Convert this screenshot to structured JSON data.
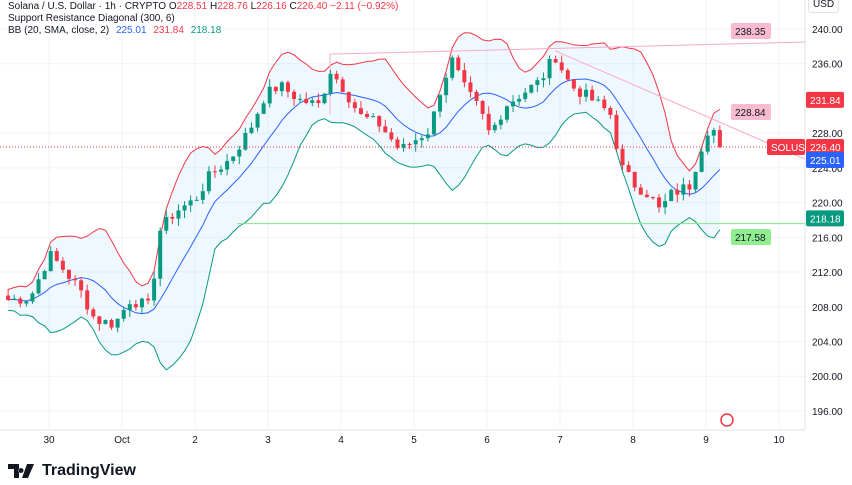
{
  "legend": {
    "title": "Solana / U.S. Dollar · 1h · CRYPTO",
    "o_label": "O",
    "o": "228.51",
    "h_label": "H",
    "h": "228.76",
    "l_label": "L",
    "l": "226.16",
    "c_label": "C",
    "c": "226.40",
    "change": "−2.11 (−0.92%)",
    "sr": "Support Resistance Diagonal (300, 6)",
    "bb": "BB (20, SMA, close, 2)",
    "bb_mid": "225.01",
    "bb_up": "231.84",
    "bb_low": "218.18"
  },
  "currency": "USD",
  "brand": "TradingView",
  "colors": {
    "up": "#089981",
    "down": "#f23645",
    "basis": "#2962ff",
    "band": "#f23645",
    "lower": "#089981",
    "sr": "#f7a9c8",
    "support": "#7ee787"
  },
  "chart_data": {
    "type": "candlestick",
    "symbol": "SOLUSD",
    "last_price": "226.40",
    "ylim": [
      194,
      242
    ],
    "y_ticks": [
      "240.00",
      "236.00",
      "228.00",
      "224.00",
      "220.00",
      "216.00",
      "212.00",
      "208.00",
      "204.00",
      "200.00",
      "196.00"
    ],
    "x_ticks": [
      {
        "label": "30",
        "day": -1
      },
      {
        "label": "Oct",
        "day": 0
      },
      {
        "label": "2",
        "day": 1
      },
      {
        "label": "3",
        "day": 2
      },
      {
        "label": "4",
        "day": 3
      },
      {
        "label": "5",
        "day": 4
      },
      {
        "label": "6",
        "day": 5
      },
      {
        "label": "7",
        "day": 6
      },
      {
        "label": "8",
        "day": 7
      },
      {
        "label": "9",
        "day": 8
      },
      {
        "label": "10",
        "day": 9
      }
    ],
    "price_path_day_close": [
      [
        -1.56,
        208.8
      ],
      [
        -1.26,
        209
      ],
      [
        -0.99,
        214
      ],
      [
        -0.85,
        212.8
      ],
      [
        -0.58,
        210
      ],
      [
        -0.37,
        206.5
      ],
      [
        -0.1,
        206
      ],
      [
        0.11,
        208.8
      ],
      [
        0.38,
        208
      ],
      [
        0.52,
        216.8
      ],
      [
        0.73,
        219
      ],
      [
        1.0,
        220.3
      ],
      [
        1.21,
        223.2
      ],
      [
        1.48,
        225
      ],
      [
        1.75,
        228.4
      ],
      [
        1.96,
        232.4
      ],
      [
        2.16,
        233.5
      ],
      [
        2.44,
        231.8
      ],
      [
        2.71,
        231.2
      ],
      [
        2.85,
        235.3
      ],
      [
        3.05,
        233
      ],
      [
        3.26,
        230
      ],
      [
        3.53,
        229
      ],
      [
        3.81,
        226
      ],
      [
        4.01,
        227.2
      ],
      [
        4.22,
        228.4
      ],
      [
        4.36,
        233
      ],
      [
        4.52,
        236.4
      ],
      [
        4.7,
        233
      ],
      [
        4.9,
        230.7
      ],
      [
        5.04,
        227.8
      ],
      [
        5.25,
        231.2
      ],
      [
        5.45,
        232.4
      ],
      [
        5.73,
        234
      ],
      [
        5.93,
        237
      ],
      [
        6.14,
        233.5
      ],
      [
        6.34,
        232.4
      ],
      [
        6.55,
        231.2
      ],
      [
        6.71,
        230
      ],
      [
        6.82,
        224.3
      ],
      [
        7.03,
        222
      ],
      [
        7.23,
        220.9
      ],
      [
        7.37,
        219
      ],
      [
        7.51,
        220.9
      ],
      [
        7.78,
        222
      ],
      [
        7.92,
        226
      ],
      [
        8.05,
        229
      ],
      [
        8.26,
        226.4
      ]
    ],
    "resistance_line": {
      "from": [
        2.85,
        237.1
      ],
      "to": [
        9.39,
        238.5
      ],
      "label": "238.35"
    },
    "diagonal_line": {
      "from": [
        5.93,
        237.5
      ],
      "to": [
        9.39,
        225
      ],
      "label": "228.84"
    },
    "support_line": {
      "from": [
        1.58,
        217.58
      ],
      "label": "217.58"
    },
    "price_labels": {
      "bb_up": "231.84",
      "bb_mid": "225.01",
      "bb_low": "218.18"
    }
  }
}
